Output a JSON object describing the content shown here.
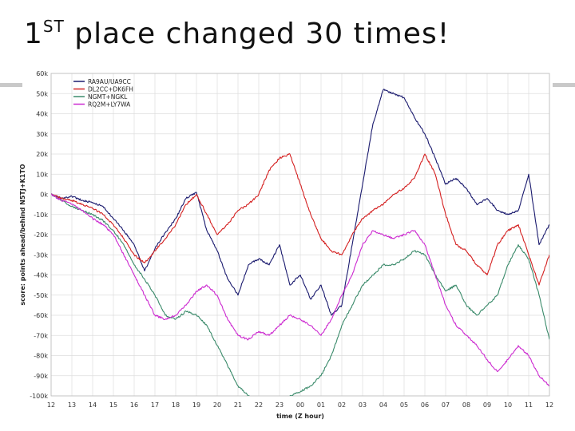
{
  "slide": {
    "title_main": "1",
    "title_sup": "ST",
    "title_rest": " place changed 30 times!"
  },
  "chart_data": {
    "type": "line",
    "title": "",
    "xlabel": "time (Z hour)",
    "ylabel": "score: points ahead/behind N5TJ+K1TO",
    "x_tick_labels": [
      "12",
      "13",
      "14",
      "15",
      "16",
      "17",
      "18",
      "19",
      "20",
      "21",
      "22",
      "23",
      "00",
      "01",
      "02",
      "03",
      "04",
      "05",
      "06",
      "07",
      "08",
      "09",
      "10",
      "11",
      "12"
    ],
    "y_tick_labels": [
      "60k",
      "50k",
      "40k",
      "30k",
      "20k",
      "10k",
      "0k",
      "-10k",
      "-20k",
      "-30k",
      "-40k",
      "-50k",
      "-60k",
      "-70k",
      "-80k",
      "-90k",
      "-100k"
    ],
    "xlim": [
      0,
      24
    ],
    "ylim": [
      -100000,
      60000
    ],
    "grid": true,
    "legend_position": "top-left",
    "series": [
      {
        "name": "RA9AU/UA9CC",
        "color": "#1a1a6e",
        "x": [
          0,
          0.5,
          1,
          1.5,
          2,
          2.5,
          3,
          3.5,
          4,
          4.5,
          5,
          5.5,
          6,
          6.5,
          7,
          7.5,
          8,
          8.5,
          9,
          9.5,
          10,
          10.5,
          11,
          11.5,
          12,
          12.5,
          13,
          13.5,
          14,
          14.5,
          15,
          15.5,
          16,
          16.5,
          17,
          17.5,
          18,
          18.5,
          19,
          19.5,
          20,
          20.5,
          21,
          21.5,
          22,
          22.5,
          23,
          23.5,
          24
        ],
        "y": [
          0,
          -2000,
          -1000,
          -3000,
          -4000,
          -6000,
          -12000,
          -18000,
          -25000,
          -38000,
          -27000,
          -19000,
          -12000,
          -2000,
          1000,
          -18000,
          -28000,
          -42000,
          -50000,
          -35000,
          -32000,
          -35000,
          -25000,
          -45000,
          -40000,
          -52000,
          -45000,
          -60000,
          -55000,
          -25000,
          5000,
          35000,
          52000,
          50000,
          48000,
          38000,
          30000,
          18000,
          5000,
          8000,
          3000,
          -5000,
          -2000,
          -8000,
          -10000,
          -8000,
          10000,
          -25000,
          -15000
        ]
      },
      {
        "name": "DL2CC+DK6FH",
        "color": "#d42020",
        "x": [
          0,
          0.5,
          1,
          1.5,
          2,
          2.5,
          3,
          3.5,
          4,
          4.5,
          5,
          5.5,
          6,
          6.5,
          7,
          7.5,
          8,
          8.5,
          9,
          9.5,
          10,
          10.5,
          11,
          11.5,
          12,
          12.5,
          13,
          13.5,
          14,
          14.5,
          15,
          15.5,
          16,
          16.5,
          17,
          17.5,
          18,
          18.5,
          19,
          19.5,
          20,
          20.5,
          21,
          21.5,
          22,
          22.5,
          23,
          23.5,
          24
        ],
        "y": [
          0,
          -2000,
          -3000,
          -5000,
          -7000,
          -10000,
          -15000,
          -22000,
          -30000,
          -34000,
          -28000,
          -22000,
          -15000,
          -5000,
          0,
          -10000,
          -20000,
          -15000,
          -8000,
          -5000,
          0,
          12000,
          18000,
          20000,
          5000,
          -10000,
          -22000,
          -28000,
          -30000,
          -20000,
          -12000,
          -8000,
          -5000,
          0,
          3000,
          8000,
          20000,
          10000,
          -10000,
          -25000,
          -28000,
          -35000,
          -40000,
          -25000,
          -18000,
          -15000,
          -30000,
          -45000,
          -30000
        ]
      },
      {
        "name": "NGMT+NGKL",
        "color": "#3a8a6a",
        "x": [
          0,
          0.5,
          1,
          1.5,
          2,
          2.5,
          3,
          3.5,
          4,
          4.5,
          5,
          5.5,
          6,
          6.5,
          7,
          7.5,
          8,
          8.5,
          9,
          9.5,
          10,
          10.5,
          11,
          11.5,
          12,
          12.5,
          13,
          13.5,
          14,
          14.5,
          15,
          15.5,
          16,
          16.5,
          17,
          17.5,
          18,
          18.5,
          19,
          19.5,
          20,
          20.5,
          21,
          21.5,
          22,
          22.5,
          23,
          23.5,
          24
        ],
        "y": [
          0,
          -3000,
          -6000,
          -8000,
          -10000,
          -13000,
          -18000,
          -25000,
          -35000,
          -42000,
          -50000,
          -60000,
          -62000,
          -58000,
          -60000,
          -65000,
          -75000,
          -85000,
          -95000,
          -100000,
          -103000,
          -105000,
          -103000,
          -100000,
          -98000,
          -95000,
          -90000,
          -80000,
          -65000,
          -55000,
          -45000,
          -40000,
          -35000,
          -35000,
          -32000,
          -28000,
          -30000,
          -40000,
          -48000,
          -45000,
          -55000,
          -60000,
          -55000,
          -50000,
          -35000,
          -25000,
          -32000,
          -50000,
          -72000
        ]
      },
      {
        "name": "RQ2M+LY7WA",
        "color": "#cc2ad0",
        "x": [
          0,
          0.5,
          1,
          1.5,
          2,
          2.5,
          3,
          3.5,
          4,
          4.5,
          5,
          5.5,
          6,
          6.5,
          7,
          7.5,
          8,
          8.5,
          9,
          9.5,
          10,
          10.5,
          11,
          11.5,
          12,
          12.5,
          13,
          13.5,
          14,
          14.5,
          15,
          15.5,
          16,
          16.5,
          17,
          17.5,
          18,
          18.5,
          19,
          19.5,
          20,
          20.5,
          21,
          21.5,
          22,
          22.5,
          23,
          23.5,
          24
        ],
        "y": [
          0,
          -3000,
          -5000,
          -8000,
          -12000,
          -15000,
          -20000,
          -30000,
          -40000,
          -50000,
          -60000,
          -62000,
          -60000,
          -55000,
          -48000,
          -45000,
          -50000,
          -62000,
          -70000,
          -72000,
          -68000,
          -70000,
          -65000,
          -60000,
          -62000,
          -65000,
          -70000,
          -62000,
          -50000,
          -40000,
          -25000,
          -18000,
          -20000,
          -22000,
          -20000,
          -18000,
          -25000,
          -40000,
          -55000,
          -65000,
          -70000,
          -75000,
          -82000,
          -88000,
          -82000,
          -75000,
          -80000,
          -90000,
          -95000
        ]
      }
    ]
  }
}
